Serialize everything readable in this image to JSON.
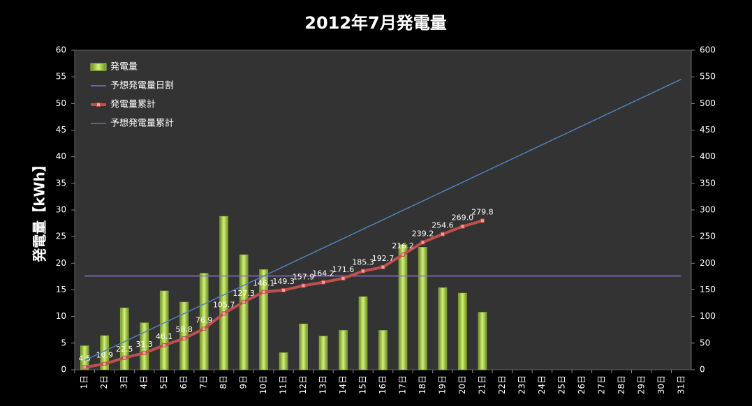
{
  "chart_data": {
    "type": "bar",
    "title": "2012年7月発電量",
    "ylabel": "発電量【kWh】",
    "categories": [
      "1日",
      "2日",
      "3日",
      "4日",
      "5日",
      "6日",
      "7日",
      "8日",
      "9日",
      "10日",
      "11日",
      "12日",
      "13日",
      "14日",
      "15日",
      "16日",
      "17日",
      "18日",
      "19日",
      "20日",
      "21日",
      "22日",
      "23日",
      "24日",
      "25日",
      "26日",
      "27日",
      "28日",
      "29日",
      "30日",
      "31日"
    ],
    "series": [
      {
        "name": "発電量",
        "type": "bar",
        "color": "#9acd32",
        "values": [
          4.5,
          6.4,
          11.6,
          8.8,
          14.8,
          12.7,
          18.1,
          28.8,
          21.6,
          18.8,
          3.2,
          8.6,
          6.3,
          7.4,
          13.7,
          7.4,
          23.5,
          23.0,
          15.4,
          14.4,
          10.8,
          null,
          null,
          null,
          null,
          null,
          null,
          null,
          null,
          null,
          null
        ]
      },
      {
        "name": "予想発電量日割",
        "type": "line",
        "color": "#8e6fc6",
        "values": [
          17.6,
          17.6,
          17.6,
          17.6,
          17.6,
          17.6,
          17.6,
          17.6,
          17.6,
          17.6,
          17.6,
          17.6,
          17.6,
          17.6,
          17.6,
          17.6,
          17.6,
          17.6,
          17.6,
          17.6,
          17.6,
          17.6,
          17.6,
          17.6,
          17.6,
          17.6,
          17.6,
          17.6,
          17.6,
          17.6,
          17.6
        ]
      },
      {
        "name": "発電量累計",
        "type": "line",
        "axis": "y2",
        "markers": true,
        "color": "#c0504d",
        "values": [
          4.5,
          10.9,
          22.5,
          31.3,
          46.1,
          58.8,
          76.9,
          105.7,
          127.3,
          146.1,
          149.3,
          157.9,
          164.2,
          171.6,
          185.3,
          192.7,
          216.2,
          239.2,
          254.6,
          269.0,
          279.8,
          null,
          null,
          null,
          null,
          null,
          null,
          null,
          null,
          null,
          null
        ],
        "value_labels": [
          "4.5",
          "10.9",
          "22.5",
          "31.3",
          "46.1",
          "58.8",
          "76.9",
          "105.7",
          "127.3",
          "146.1",
          "149.3",
          "157.9",
          "164.2",
          "171.6",
          "185.3",
          "192.7",
          "216.2",
          "239.2",
          "254.6",
          "269.0",
          "279.8",
          null,
          null,
          null,
          null,
          null,
          null,
          null,
          null,
          null,
          null
        ]
      },
      {
        "name": "予想発電量累計",
        "type": "line",
        "axis": "y2",
        "color": "#4f81bd",
        "values": [
          17.6,
          35.2,
          52.8,
          70.4,
          88,
          105.6,
          123.2,
          140.8,
          158.4,
          176,
          193.6,
          211.2,
          228.8,
          246.4,
          264,
          281.6,
          299.2,
          316.8,
          334.4,
          352,
          369.6,
          387.2,
          404.8,
          422.4,
          440,
          457.6,
          475.2,
          492.8,
          510.4,
          528,
          545.6
        ]
      }
    ],
    "ylim": [
      0,
      60
    ],
    "yticks": [
      0,
      5,
      10,
      15,
      20,
      25,
      30,
      35,
      40,
      45,
      50,
      55,
      60
    ],
    "y2lim": [
      0,
      600
    ],
    "y2ticks": [
      0,
      50,
      100,
      150,
      200,
      250,
      300,
      350,
      400,
      450,
      500,
      550,
      600
    ],
    "legend": "upper left"
  }
}
